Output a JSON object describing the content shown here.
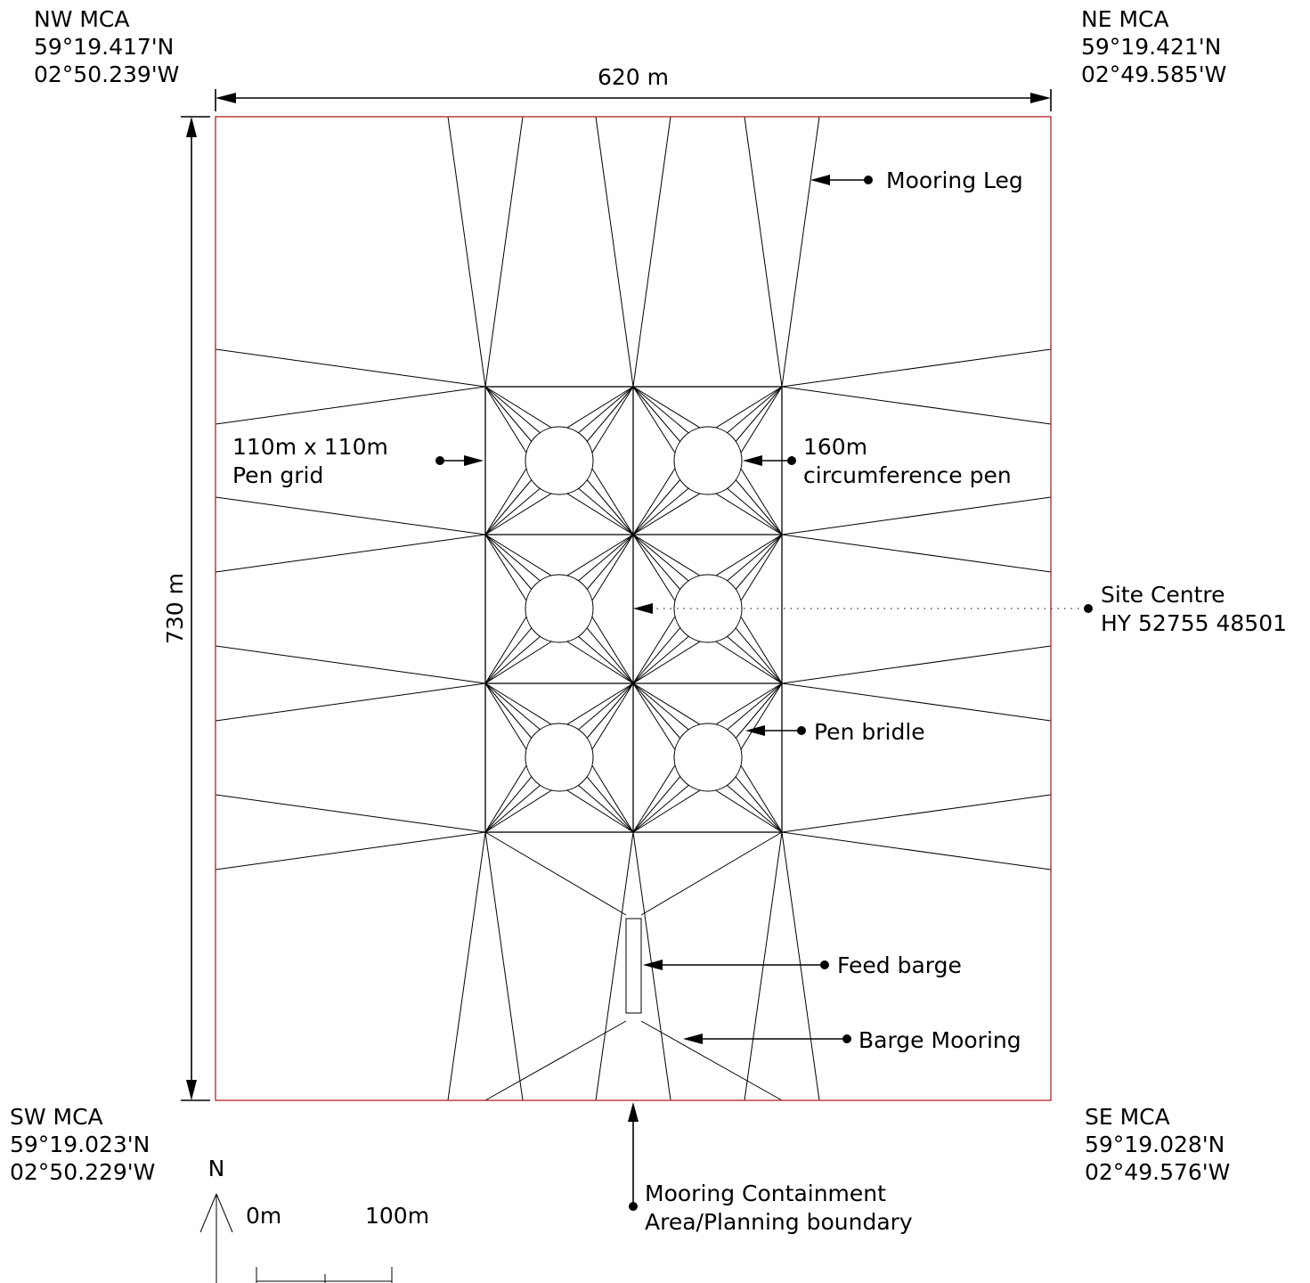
{
  "corners": {
    "nw": {
      "name": "NW MCA",
      "lat": "59°19.417'N",
      "lon": "02°50.239'W"
    },
    "ne": {
      "name": "NE MCA",
      "lat": "59°19.421'N",
      "lon": "02°49.585'W"
    },
    "sw": {
      "name": "SW MCA",
      "lat": "59°19.023'N",
      "lon": "02°50.229'W"
    },
    "se": {
      "name": "SE MCA",
      "lat": "59°19.028'N",
      "lon": "02°49.576'W"
    }
  },
  "dimensions": {
    "width": "620 m",
    "height": "730 m"
  },
  "labels": {
    "mooring_leg": "Mooring Leg",
    "pen_grid_1": "110m x 110m",
    "pen_grid_2": "Pen grid",
    "pen_circ_1": "160m",
    "pen_circ_2": "circumference pen",
    "site_centre_1": "Site Centre",
    "site_centre_2": "HY 52755 48501",
    "pen_bridle": "Pen bridle",
    "feed_barge": "Feed barge",
    "barge_mooring": "Barge Mooring",
    "mca_1": "Mooring Containment",
    "mca_2": "Area/Planning boundary"
  },
  "north": "N",
  "scale": {
    "start": "0m",
    "end": "100m"
  },
  "colors": {
    "boundary": "#b22222",
    "line": "#000000"
  }
}
